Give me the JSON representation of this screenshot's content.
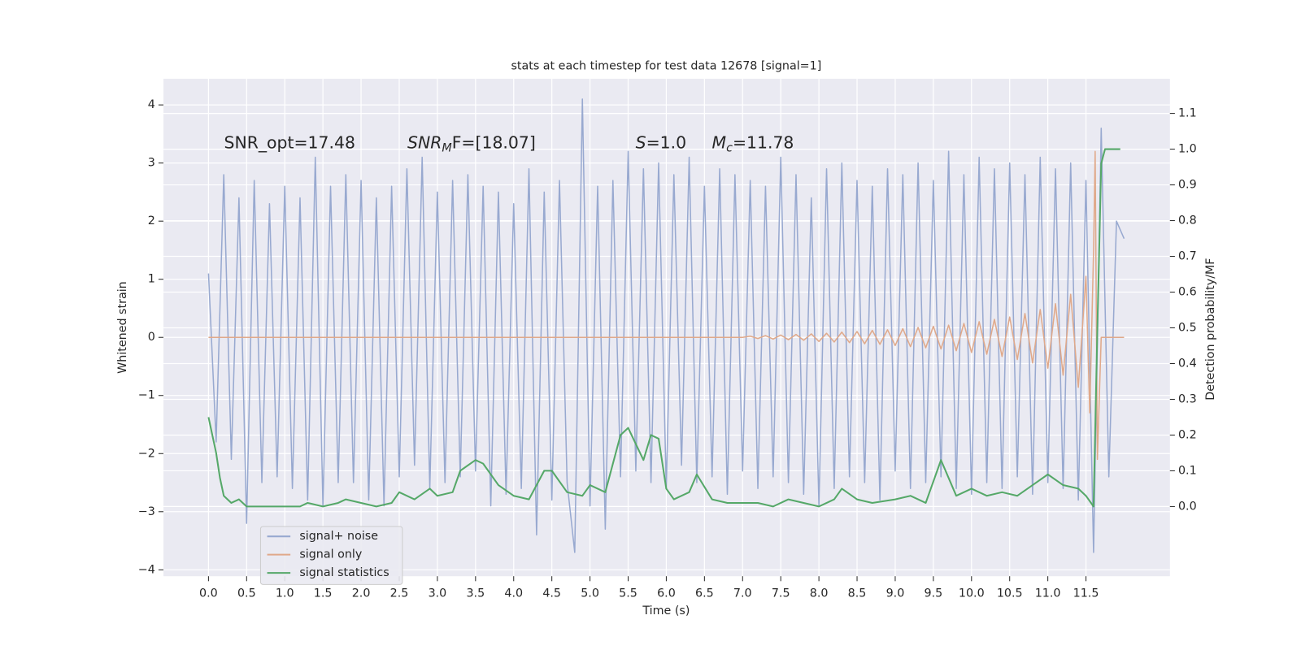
{
  "chart_data": {
    "type": "line",
    "title": "stats at each timestep for test data 12678 [signal=1]",
    "xlabel": "Time (s)",
    "ylabel": "Whitened strain",
    "y2label": "Detection probability/MF",
    "annotations": [
      {
        "text": "SNR_opt=17.48"
      },
      {
        "symbol": "SNR",
        "subscript": "M",
        "text": "F=[18.07]"
      },
      {
        "symbol": "S",
        "text": "=1.0"
      },
      {
        "symbol": "M",
        "subscript": "c",
        "text": "=11.78"
      }
    ],
    "xlim": [
      -0.59,
      12.6
    ],
    "ylim": [
      -4.11,
      4.45
    ],
    "y2lim": [
      -0.195,
      1.197
    ],
    "xticks": [
      {
        "value": 0,
        "label": "0.0"
      },
      0.5,
      {
        "value": 1,
        "label": "1.0"
      },
      1.5,
      {
        "value": 2,
        "label": "2.0"
      },
      2.5,
      {
        "value": 3,
        "label": "3.0"
      },
      3.5,
      {
        "value": 4,
        "label": "4.0"
      },
      4.5,
      {
        "value": 5,
        "label": "5.0"
      },
      5.5,
      {
        "value": 6,
        "label": "6.0"
      },
      6.5,
      {
        "value": 7,
        "label": "7.0"
      },
      7.5,
      {
        "value": 8,
        "label": "8.0"
      },
      8.5,
      {
        "value": 9,
        "label": "9.0"
      },
      9.5,
      {
        "value": 10,
        "label": "10.0"
      },
      10.5,
      {
        "value": 11,
        "label": "11.0"
      },
      11.5
    ],
    "yticks": [
      {
        "value": -4,
        "label": "−4"
      },
      {
        "value": -3,
        "label": "−3"
      },
      {
        "value": -2,
        "label": "−2"
      },
      {
        "value": -1,
        "label": "−1"
      },
      0,
      1,
      2,
      3,
      4
    ],
    "y2ticks": [
      {
        "value": 0,
        "label": "0.0"
      },
      0.1,
      0.2,
      0.3,
      0.4,
      0.5,
      0.6,
      0.7,
      0.8,
      0.9,
      {
        "value": 1,
        "label": "1.0"
      },
      1.1
    ],
    "grid": true,
    "legend_loc": "lower left",
    "series": [
      {
        "name": "signal+ noise",
        "color": "#98a9d0",
        "x": [
          0,
          0.1,
          0.2,
          0.3,
          0.4,
          0.5,
          0.6,
          0.7,
          0.8,
          0.9,
          1,
          1.1,
          1.2,
          1.3,
          1.4,
          1.5,
          1.6,
          1.7,
          1.8,
          1.9,
          2,
          2.1,
          2.2,
          2.3,
          2.4,
          2.5,
          2.6,
          2.7,
          2.8,
          2.9,
          3,
          3.1,
          3.2,
          3.3,
          3.4,
          3.5,
          3.6,
          3.7,
          3.8,
          3.9,
          4,
          4.1,
          4.2,
          4.3,
          4.4,
          4.5,
          4.6,
          4.7,
          4.8,
          4.9,
          5,
          5.1,
          5.2,
          5.3,
          5.4,
          5.5,
          5.6,
          5.7,
          5.8,
          5.9,
          6,
          6.1,
          6.2,
          6.3,
          6.4,
          6.5,
          6.6,
          6.7,
          6.8,
          6.9,
          7,
          7.1,
          7.2,
          7.3,
          7.4,
          7.5,
          7.6,
          7.7,
          7.8,
          7.9,
          8,
          8.1,
          8.2,
          8.3,
          8.4,
          8.5,
          8.6,
          8.7,
          8.8,
          8.9,
          9,
          9.1,
          9.2,
          9.3,
          9.4,
          9.5,
          9.6,
          9.7,
          9.8,
          9.9,
          10,
          10.1,
          10.2,
          10.3,
          10.4,
          10.5,
          10.6,
          10.7,
          10.8,
          10.9,
          11,
          11.1,
          11.2,
          11.3,
          11.4,
          11.5,
          11.6,
          11.7,
          11.8,
          11.9,
          12
        ],
        "values": [
          1.1,
          -1.8,
          2.8,
          -2.1,
          2.4,
          -3.2,
          2.7,
          -2.5,
          2.3,
          -2.4,
          2.6,
          -2.6,
          2.4,
          -2.8,
          3.1,
          -2.9,
          2.6,
          -2.5,
          2.8,
          -2.5,
          2.7,
          -2.8,
          2.4,
          -2.9,
          2.6,
          -2.4,
          2.9,
          -2.2,
          3.1,
          -2.6,
          2.5,
          -2.5,
          2.7,
          -2.4,
          2.8,
          -2.3,
          2.6,
          -2.9,
          2.5,
          -2.7,
          2.3,
          -2.6,
          2.9,
          -3.4,
          2.5,
          -2.8,
          2.7,
          -2.5,
          -3.7,
          4.1,
          -2.9,
          2.6,
          -3.3,
          2.7,
          -2.4,
          3.2,
          -2.3,
          2.9,
          -2.5,
          3.0,
          -2.6,
          2.8,
          -2.2,
          3.1,
          -2.5,
          2.6,
          -2.4,
          2.9,
          -2.7,
          2.8,
          -2.3,
          2.7,
          -2.6,
          2.6,
          -2.4,
          3.1,
          -2.5,
          2.8,
          -2.7,
          2.4,
          -2.9,
          2.9,
          -2.6,
          3.0,
          -2.4,
          2.7,
          -2.5,
          2.6,
          -2.8,
          2.9,
          -2.3,
          2.8,
          -2.6,
          3.0,
          -2.5,
          2.7,
          -2.4,
          3.2,
          -2.6,
          2.8,
          -2.7,
          3.1,
          -2.5,
          2.9,
          -2.6,
          3.0,
          -2.4,
          2.8,
          -2.7,
          3.1,
          -2.5,
          2.9,
          -2.6,
          3.0,
          -2.8,
          2.7,
          -3.7,
          3.6,
          -2.4,
          2.0,
          1.7
        ]
      },
      {
        "name": "signal only",
        "color": "#e0a98a",
        "x": [
          0,
          7,
          7.1,
          7.2,
          7.3,
          7.4,
          7.5,
          7.6,
          7.7,
          7.8,
          7.9,
          8,
          8.1,
          8.2,
          8.3,
          8.4,
          8.5,
          8.6,
          8.7,
          8.8,
          8.9,
          9,
          9.1,
          9.2,
          9.3,
          9.4,
          9.5,
          9.6,
          9.7,
          9.8,
          9.9,
          10,
          10.1,
          10.2,
          10.3,
          10.4,
          10.5,
          10.6,
          10.7,
          10.8,
          10.9,
          11,
          11.1,
          11.2,
          11.3,
          11.4,
          11.5,
          11.55,
          11.6,
          11.62,
          11.65,
          11.7,
          12
        ],
        "values": [
          0,
          0,
          0.02,
          -0.02,
          0.03,
          -0.03,
          0.04,
          -0.04,
          0.05,
          -0.05,
          0.06,
          -0.07,
          0.07,
          -0.08,
          0.09,
          -0.09,
          0.1,
          -0.11,
          0.12,
          -0.12,
          0.13,
          -0.14,
          0.15,
          -0.16,
          0.17,
          -0.18,
          0.19,
          -0.2,
          0.21,
          -0.23,
          0.24,
          -0.26,
          0.27,
          -0.29,
          0.31,
          -0.33,
          0.35,
          -0.38,
          0.41,
          -0.44,
          0.48,
          -0.53,
          0.58,
          -0.65,
          0.74,
          -0.86,
          1.05,
          -1.3,
          1.5,
          3.2,
          -2.1,
          0,
          0
        ]
      },
      {
        "name": "signal statistics",
        "color": "#55a868",
        "axis": "y2",
        "x": [
          0,
          0.1,
          0.15,
          0.2,
          0.3,
          0.4,
          0.5,
          0.6,
          0.8,
          1,
          1.2,
          1.3,
          1.5,
          1.7,
          1.8,
          2,
          2.2,
          2.4,
          2.5,
          2.7,
          2.9,
          3,
          3.2,
          3.3,
          3.5,
          3.6,
          3.8,
          4,
          4.2,
          4.4,
          4.5,
          4.7,
          4.9,
          5,
          5.2,
          5.4,
          5.5,
          5.7,
          5.8,
          5.9,
          6,
          6.1,
          6.3,
          6.4,
          6.6,
          6.8,
          7,
          7.2,
          7.4,
          7.6,
          7.8,
          8,
          8.2,
          8.3,
          8.5,
          8.7,
          9,
          9.2,
          9.4,
          9.6,
          9.8,
          10,
          10.2,
          10.4,
          10.6,
          10.8,
          11,
          11.2,
          11.4,
          11.5,
          11.6,
          11.65,
          11.7,
          11.75,
          11.8,
          11.95
        ],
        "values": [
          0.25,
          0.15,
          0.08,
          0.03,
          0.01,
          0.02,
          0,
          0,
          0,
          0,
          0,
          0.01,
          0,
          0.01,
          0.02,
          0.01,
          0,
          0.01,
          0.04,
          0.02,
          0.05,
          0.03,
          0.04,
          0.1,
          0.13,
          0.12,
          0.06,
          0.03,
          0.02,
          0.1,
          0.1,
          0.04,
          0.03,
          0.06,
          0.04,
          0.2,
          0.22,
          0.13,
          0.2,
          0.19,
          0.05,
          0.02,
          0.04,
          0.09,
          0.02,
          0.01,
          0.01,
          0.01,
          0,
          0.02,
          0.01,
          0,
          0.02,
          0.05,
          0.02,
          0.01,
          0.02,
          0.03,
          0.01,
          0.13,
          0.03,
          0.05,
          0.03,
          0.04,
          0.03,
          0.06,
          0.09,
          0.06,
          0.05,
          0.03,
          0,
          0.5,
          0.96,
          1,
          1,
          1
        ]
      }
    ]
  }
}
